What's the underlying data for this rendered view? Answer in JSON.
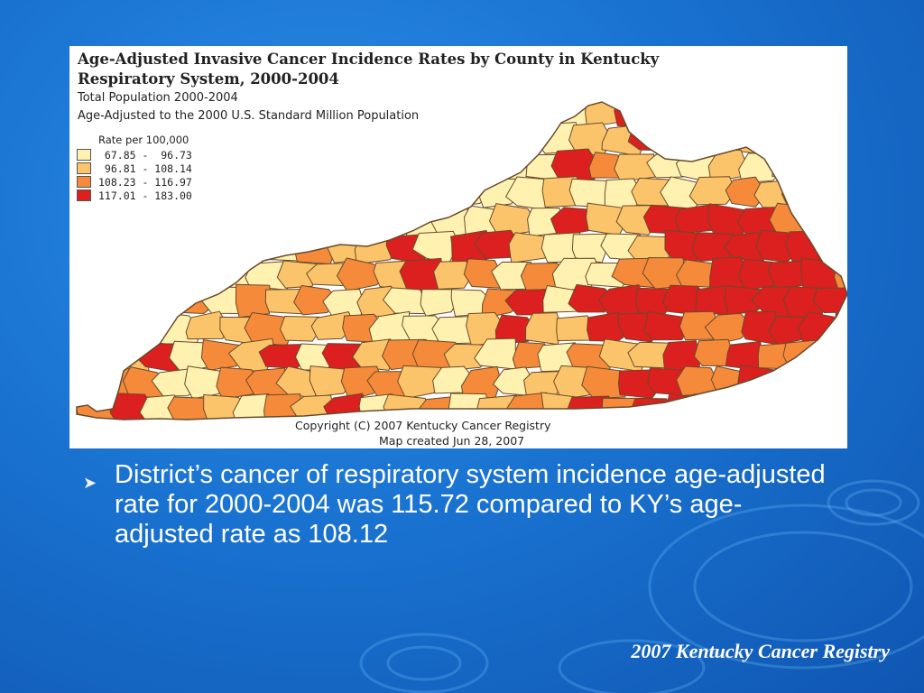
{
  "map": {
    "title_line1": "Age-Adjusted Invasive Cancer Incidence Rates by County in Kentucky",
    "title_line2": "Respiratory System, 2000-2004",
    "subtitle1": "Total Population 2000-2004",
    "subtitle2": "Age-Adjusted to the 2000 U.S. Standard Million Population",
    "legend_title": "Rate per 100,000",
    "legend": [
      {
        "label": " 67.85 -  96.73",
        "color": "#fff2b0"
      },
      {
        "label": " 96.81 - 108.14",
        "color": "#fcc46a"
      },
      {
        "label": "108.23 - 116.97",
        "color": "#f48a3a"
      },
      {
        "label": "117.01 - 183.00",
        "color": "#dc1f1f"
      }
    ],
    "copyright": "Copyright (C) 2007 Kentucky Cancer Registry",
    "created": "Map created Jun 28, 2007"
  },
  "bullet": {
    "text": "District’s cancer of respiratory system incidence age-adjusted rate for 2000-2004 was 115.72  compared to KY’s age-adjusted rate as 108.12"
  },
  "footer": "2007 Kentucky Cancer Registry",
  "colors": {
    "background": "#1a73d1",
    "county_border": "#6a4a2a"
  }
}
